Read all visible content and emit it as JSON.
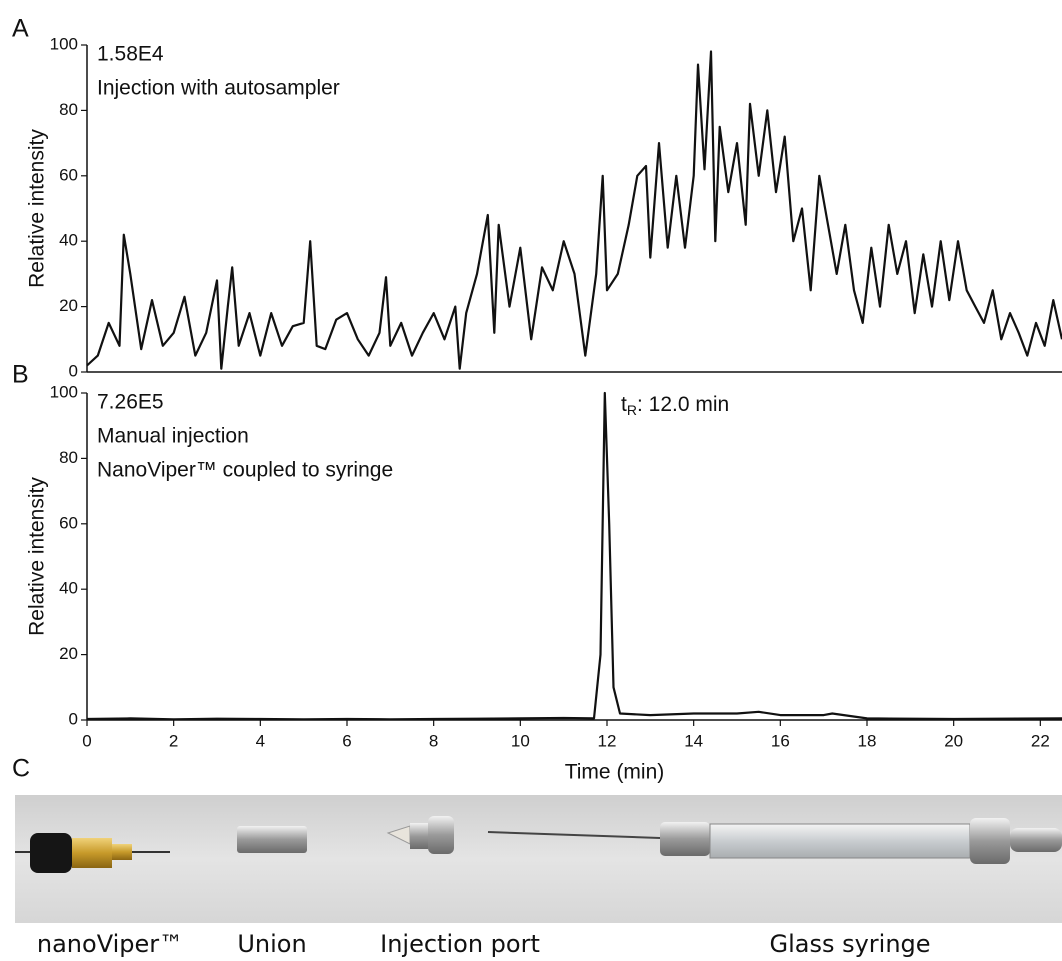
{
  "chart_data": [
    {
      "type": "line",
      "panel": "A",
      "ylabel": "Relative intensity",
      "annotations": [
        "1.58E4",
        "Injection with autosampler"
      ],
      "xlim": [
        0,
        22.5
      ],
      "ylim": [
        0,
        100
      ],
      "yticks": [
        0,
        20,
        40,
        60,
        80,
        100
      ],
      "color": "#111111",
      "x": [
        0,
        0.25,
        0.5,
        0.75,
        0.85,
        1.0,
        1.25,
        1.5,
        1.75,
        2.0,
        2.25,
        2.5,
        2.75,
        3.0,
        3.1,
        3.25,
        3.35,
        3.5,
        3.75,
        4.0,
        4.25,
        4.5,
        4.75,
        5.0,
        5.15,
        5.3,
        5.5,
        5.75,
        6.0,
        6.25,
        6.5,
        6.75,
        6.9,
        7.0,
        7.25,
        7.5,
        7.75,
        8.0,
        8.25,
        8.5,
        8.6,
        8.75,
        9.0,
        9.25,
        9.4,
        9.5,
        9.75,
        10.0,
        10.25,
        10.5,
        10.75,
        11.0,
        11.25,
        11.4,
        11.5,
        11.75,
        11.9,
        12.0,
        12.25,
        12.5,
        12.7,
        12.9,
        13.0,
        13.2,
        13.4,
        13.6,
        13.8,
        14.0,
        14.1,
        14.25,
        14.4,
        14.5,
        14.6,
        14.8,
        15.0,
        15.2,
        15.3,
        15.5,
        15.7,
        15.9,
        16.1,
        16.3,
        16.5,
        16.7,
        16.9,
        17.1,
        17.3,
        17.5,
        17.7,
        17.9,
        18.1,
        18.3,
        18.5,
        18.7,
        18.9,
        19.1,
        19.3,
        19.5,
        19.7,
        19.9,
        20.1,
        20.3,
        20.5,
        20.7,
        20.9,
        21.1,
        21.3,
        21.5,
        21.7,
        21.9,
        22.1,
        22.3,
        22.5
      ],
      "values": [
        2,
        5,
        15,
        8,
        42,
        30,
        7,
        22,
        8,
        12,
        23,
        5,
        12,
        28,
        1,
        20,
        32,
        8,
        18,
        5,
        18,
        8,
        14,
        15,
        40,
        8,
        7,
        16,
        18,
        10,
        5,
        12,
        29,
        8,
        15,
        5,
        12,
        18,
        10,
        20,
        1,
        18,
        30,
        48,
        12,
        45,
        20,
        38,
        10,
        32,
        25,
        40,
        30,
        15,
        5,
        30,
        60,
        25,
        30,
        45,
        60,
        63,
        35,
        70,
        38,
        60,
        38,
        60,
        94,
        62,
        98,
        40,
        75,
        55,
        70,
        45,
        82,
        60,
        80,
        55,
        72,
        40,
        50,
        25,
        60,
        45,
        30,
        45,
        25,
        15,
        38,
        20,
        45,
        30,
        40,
        18,
        36,
        20,
        40,
        22,
        40,
        25,
        20,
        15,
        25,
        10,
        18,
        12,
        5,
        15,
        8,
        22,
        10
      ]
    },
    {
      "type": "line",
      "panel": "B",
      "ylabel": "Relative intensity",
      "xlabel": "Time (min)",
      "annotations": [
        "7.26E5",
        "Manual injection",
        "NanoViper™ coupled to syringe"
      ],
      "peak_label": {
        "base": "t",
        "subscript": "R",
        "text": ": 12.0 min"
      },
      "xlim": [
        0,
        22.5
      ],
      "ylim": [
        0,
        100
      ],
      "yticks": [
        0,
        20,
        40,
        60,
        80,
        100
      ],
      "xticks": [
        0,
        2,
        4,
        6,
        8,
        10,
        12,
        14,
        16,
        18,
        20,
        22
      ],
      "color": "#111111",
      "x": [
        0,
        1,
        2,
        3,
        4,
        5,
        6,
        7,
        8,
        9,
        10,
        11,
        11.7,
        11.85,
        11.95,
        12.05,
        12.15,
        12.3,
        13,
        14,
        15,
        15.5,
        16,
        17,
        17.2,
        18,
        20,
        22.5
      ],
      "values": [
        0.3,
        0.5,
        0.2,
        0.4,
        0.3,
        0.2,
        0.3,
        0.2,
        0.3,
        0.4,
        0.5,
        0.6,
        0.5,
        20,
        100,
        60,
        10,
        2,
        1.5,
        2,
        2,
        2.5,
        1.5,
        1.5,
        2,
        0.5,
        0.3,
        0.5
      ]
    }
  ],
  "photo": {
    "panel": "C",
    "captions": [
      "nanoViper™",
      "Union",
      "Injection port",
      "Glass syringe"
    ]
  }
}
